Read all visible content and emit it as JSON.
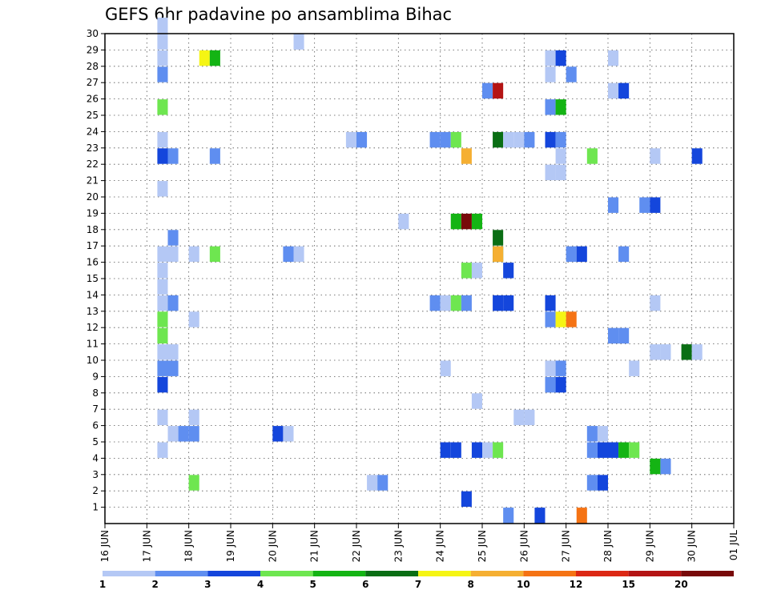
{
  "chart_data": {
    "type": "heatmap",
    "title": "GEFS 6hr padavine po ansamblima Bihac",
    "xlabel": "",
    "ylabel": "",
    "x_ticks": [
      "16 JUN",
      "17 JUN",
      "18 JUN",
      "19 JUN",
      "20 JUN",
      "21 JUN",
      "22 JUN",
      "23 JUN",
      "24 JUN",
      "25 JUN",
      "26 JUN",
      "27 JUN",
      "28 JUN",
      "29 JUN",
      "30 JUN",
      "01 JUL"
    ],
    "y_ticks": [
      1,
      2,
      3,
      4,
      5,
      6,
      7,
      8,
      9,
      10,
      11,
      12,
      13,
      14,
      15,
      16,
      17,
      18,
      19,
      20,
      21,
      22,
      23,
      24,
      25,
      26,
      27,
      28,
      29,
      30
    ],
    "ylim": [
      0,
      30
    ],
    "x_unit": "6-hour steps from 16 JUN 00Z",
    "grid": true,
    "levels": [
      "1",
      "2",
      "3",
      "4",
      "5",
      "6",
      "7",
      "8",
      "10",
      "12",
      "15",
      "20"
    ],
    "colors": [
      "#b4c8f5",
      "#5f8ef0",
      "#1446dc",
      "#6ee650",
      "#14b414",
      "#0a6e14",
      "#f5f514",
      "#f5af32",
      "#f57314",
      "#dc2814",
      "#b41414",
      "#780a0a"
    ],
    "cells": [
      [
        5,
        30,
        0
      ],
      [
        5,
        29,
        0
      ],
      [
        5,
        28,
        0
      ],
      [
        9,
        28,
        6
      ],
      [
        10,
        28,
        4
      ],
      [
        18,
        29,
        0
      ],
      [
        5,
        27,
        1
      ],
      [
        5,
        25,
        3
      ],
      [
        5,
        23,
        0
      ],
      [
        5,
        22,
        2
      ],
      [
        6,
        22,
        1
      ],
      [
        5,
        20,
        0
      ],
      [
        6,
        17,
        1
      ],
      [
        5,
        16,
        0
      ],
      [
        6,
        16,
        0
      ],
      [
        5,
        15,
        0
      ],
      [
        5,
        14,
        0
      ],
      [
        5,
        13,
        0
      ],
      [
        6,
        13,
        1
      ],
      [
        5,
        12,
        3
      ],
      [
        5,
        11,
        3
      ],
      [
        5,
        10,
        0
      ],
      [
        6,
        10,
        0
      ],
      [
        5,
        9,
        1
      ],
      [
        6,
        9,
        1
      ],
      [
        5,
        8,
        2
      ],
      [
        5,
        6,
        0
      ],
      [
        6,
        5,
        0
      ],
      [
        5,
        4,
        0
      ],
      [
        8,
        16,
        0
      ],
      [
        8,
        12,
        0
      ],
      [
        8,
        6,
        0
      ],
      [
        7,
        5,
        1
      ],
      [
        8,
        5,
        1
      ],
      [
        8,
        2,
        3
      ],
      [
        10,
        22,
        1
      ],
      [
        10,
        16,
        3
      ],
      [
        16,
        5,
        2
      ],
      [
        17,
        5,
        0
      ],
      [
        17,
        16,
        1
      ],
      [
        18,
        16,
        0
      ],
      [
        23,
        23,
        0
      ],
      [
        24,
        23,
        1
      ],
      [
        25,
        2,
        0
      ],
      [
        26,
        2,
        1
      ],
      [
        28,
        18,
        0
      ],
      [
        31,
        23,
        1
      ],
      [
        32,
        23,
        1
      ],
      [
        33,
        23,
        3
      ],
      [
        34,
        22,
        7
      ],
      [
        31,
        13,
        1
      ],
      [
        32,
        13,
        0
      ],
      [
        33,
        13,
        3
      ],
      [
        34,
        13,
        1
      ],
      [
        32,
        9,
        0
      ],
      [
        33,
        18,
        4
      ],
      [
        34,
        18,
        11
      ],
      [
        35,
        18,
        4
      ],
      [
        34,
        15,
        3
      ],
      [
        35,
        15,
        0
      ],
      [
        35,
        7,
        0
      ],
      [
        32,
        4,
        2
      ],
      [
        33,
        4,
        2
      ],
      [
        35,
        4,
        2
      ],
      [
        36,
        4,
        0
      ],
      [
        37,
        4,
        3
      ],
      [
        34,
        1,
        2
      ],
      [
        36,
        26,
        1
      ],
      [
        37,
        26,
        10
      ],
      [
        37,
        23,
        5
      ],
      [
        38,
        23,
        0
      ],
      [
        39,
        23,
        0
      ],
      [
        40,
        23,
        1
      ],
      [
        37,
        17,
        5
      ],
      [
        37,
        16,
        5
      ],
      [
        37,
        16,
        7
      ],
      [
        38,
        15,
        2
      ],
      [
        37,
        13,
        2
      ],
      [
        38,
        13,
        2
      ],
      [
        39,
        6,
        0
      ],
      [
        40,
        6,
        0
      ],
      [
        38,
        0,
        1
      ],
      [
        41,
        0,
        2
      ],
      [
        42,
        28,
        0
      ],
      [
        43,
        28,
        2
      ],
      [
        42,
        27,
        0
      ],
      [
        44,
        27,
        1
      ],
      [
        42,
        25,
        1
      ],
      [
        43,
        25,
        4
      ],
      [
        42,
        23,
        2
      ],
      [
        43,
        23,
        1
      ],
      [
        43,
        22,
        0
      ],
      [
        42,
        21,
        0
      ],
      [
        43,
        21,
        0
      ],
      [
        42,
        13,
        2
      ],
      [
        42,
        12,
        1
      ],
      [
        43,
        12,
        6
      ],
      [
        44,
        12,
        8
      ],
      [
        42,
        9,
        0
      ],
      [
        43,
        9,
        1
      ],
      [
        42,
        8,
        1
      ],
      [
        43,
        8,
        2
      ],
      [
        44,
        16,
        1
      ],
      [
        45,
        16,
        2
      ],
      [
        46,
        22,
        3
      ],
      [
        45,
        0,
        8
      ],
      [
        46,
        5,
        1
      ],
      [
        47,
        5,
        0
      ],
      [
        46,
        4,
        1
      ],
      [
        47,
        4,
        2
      ],
      [
        46,
        2,
        1
      ],
      [
        47,
        2,
        2
      ],
      [
        48,
        28,
        0
      ],
      [
        48,
        26,
        0
      ],
      [
        49,
        26,
        2
      ],
      [
        48,
        19,
        1
      ],
      [
        49,
        16,
        1
      ],
      [
        48,
        11,
        1
      ],
      [
        49,
        11,
        1
      ],
      [
        48,
        4,
        2
      ],
      [
        49,
        4,
        4
      ],
      [
        50,
        4,
        3
      ],
      [
        50,
        9,
        0
      ],
      [
        52,
        22,
        0
      ],
      [
        51,
        19,
        1
      ],
      [
        52,
        19,
        2
      ],
      [
        52,
        13,
        0
      ],
      [
        52,
        10,
        0
      ],
      [
        53,
        10,
        0
      ],
      [
        52,
        3,
        4
      ],
      [
        53,
        3,
        1
      ],
      [
        55,
        10,
        5
      ],
      [
        56,
        10,
        0
      ],
      [
        56,
        22,
        2
      ]
    ]
  }
}
